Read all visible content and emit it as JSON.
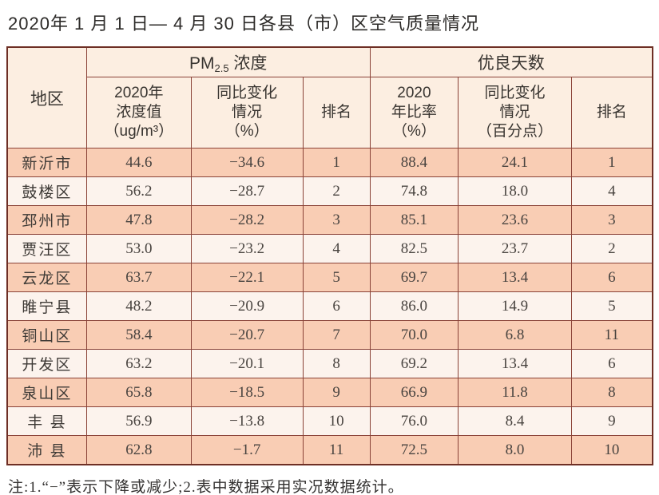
{
  "page": {
    "title": "2020年 1 月 1 日— 4 月 30 日各县（市）区空气质量情况",
    "note": "注:1.“−”表示下降或减少;2.表中数据采用实况数据统计。"
  },
  "colors": {
    "border": "#8a4237",
    "outer_border": "#6e2f25",
    "row_odd_bg": "#f9cdb4",
    "row_even_bg": "#fcf3ed",
    "header_bg": "#fceee1",
    "text": "#3e3a36"
  },
  "table": {
    "group_headers": {
      "region": "地区",
      "pm25_prefix": "PM",
      "pm25_subscript": "2.5",
      "pm25_suffix": " 浓度",
      "good_days": "优良天数"
    },
    "sub_headers": {
      "pm_value_l1": "2020年",
      "pm_value_l2": "浓度值",
      "pm_value_l3": "（ug/m³）",
      "pm_change_l1": "同比变化",
      "pm_change_l2": "情况",
      "pm_change_l3": "（%）",
      "pm_rank": "排名",
      "ratio_l1": "2020",
      "ratio_l2": "年比率",
      "ratio_l3": "（%）",
      "ratio_change_l1": "同比变化",
      "ratio_change_l2": "情况",
      "ratio_change_l3": "（百分点）",
      "ratio_rank": "排名"
    },
    "fields": [
      "region",
      "pm_value",
      "pm_change",
      "pm_rank",
      "ratio",
      "ratio_change",
      "ratio_rank"
    ],
    "rows": [
      {
        "region": "新沂市",
        "pm_value": "44.6",
        "pm_change": "−34.6",
        "pm_rank": "1",
        "ratio": "88.4",
        "ratio_change": "24.1",
        "ratio_rank": "1"
      },
      {
        "region": "鼓楼区",
        "pm_value": "56.2",
        "pm_change": "−28.7",
        "pm_rank": "2",
        "ratio": "74.8",
        "ratio_change": "18.0",
        "ratio_rank": "4"
      },
      {
        "region": "邳州市",
        "pm_value": "47.8",
        "pm_change": "−28.2",
        "pm_rank": "3",
        "ratio": "85.1",
        "ratio_change": "23.6",
        "ratio_rank": "3"
      },
      {
        "region": "贾汪区",
        "pm_value": "53.0",
        "pm_change": "−23.2",
        "pm_rank": "4",
        "ratio": "82.5",
        "ratio_change": "23.7",
        "ratio_rank": "2"
      },
      {
        "region": "云龙区",
        "pm_value": "63.7",
        "pm_change": "−22.1",
        "pm_rank": "5",
        "ratio": "69.7",
        "ratio_change": "13.4",
        "ratio_rank": "6"
      },
      {
        "region": "睢宁县",
        "pm_value": "48.2",
        "pm_change": "−20.9",
        "pm_rank": "6",
        "ratio": "86.0",
        "ratio_change": "14.9",
        "ratio_rank": "5"
      },
      {
        "region": "铜山区",
        "pm_value": "58.4",
        "pm_change": "−20.7",
        "pm_rank": "7",
        "ratio": "70.0",
        "ratio_change": "6.8",
        "ratio_rank": "11"
      },
      {
        "region": "开发区",
        "pm_value": "63.2",
        "pm_change": "−20.1",
        "pm_rank": "8",
        "ratio": "69.2",
        "ratio_change": "13.4",
        "ratio_rank": "6"
      },
      {
        "region": "泉山区",
        "pm_value": "65.8",
        "pm_change": "−18.5",
        "pm_rank": "9",
        "ratio": "66.9",
        "ratio_change": "11.8",
        "ratio_rank": "8"
      },
      {
        "region": "丰 县",
        "pm_value": "56.9",
        "pm_change": "−13.8",
        "pm_rank": "10",
        "ratio": "76.0",
        "ratio_change": "8.4",
        "ratio_rank": "9"
      },
      {
        "region": "沛 县",
        "pm_value": "62.8",
        "pm_change": "−1.7",
        "pm_rank": "11",
        "ratio": "72.5",
        "ratio_change": "8.0",
        "ratio_rank": "10"
      }
    ]
  }
}
